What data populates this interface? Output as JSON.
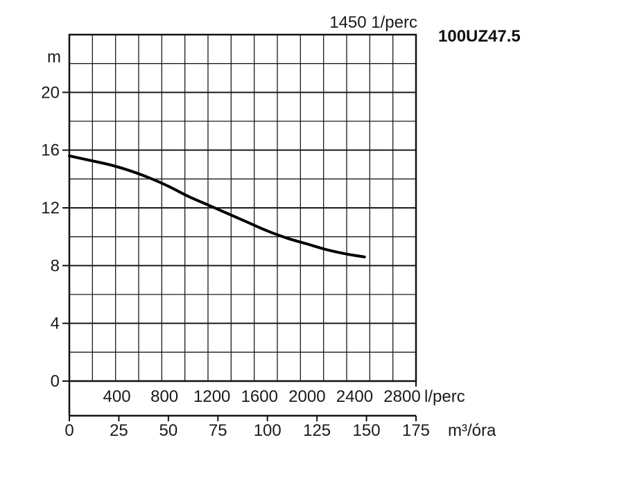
{
  "chart_data": {
    "type": "line",
    "model": "100UZ47.5",
    "speed_label": "1450 1/perc",
    "y_unit": "m",
    "x_unit_lpm": "l/perc",
    "x_unit_m3h": "m³/óra",
    "xlim": [
      0,
      175
    ],
    "ylim": [
      0,
      24
    ],
    "y_ticks": [
      0,
      4,
      8,
      12,
      16,
      20
    ],
    "lpm_ticks": [
      400,
      800,
      1200,
      1600,
      2000,
      2400,
      2800
    ],
    "m3h_ticks": [
      0,
      25,
      50,
      75,
      100,
      125,
      150,
      175
    ],
    "grid": true,
    "series": [
      {
        "x": [
          0,
          10,
          20,
          30,
          40,
          50,
          60,
          70,
          80,
          90,
          100,
          110,
          120,
          130,
          140,
          149
        ],
        "y": [
          15.6,
          15.3,
          15.0,
          14.6,
          14.1,
          13.5,
          12.8,
          12.2,
          11.6,
          11.0,
          10.4,
          9.9,
          9.5,
          9.1,
          8.8,
          8.6
        ]
      }
    ]
  }
}
